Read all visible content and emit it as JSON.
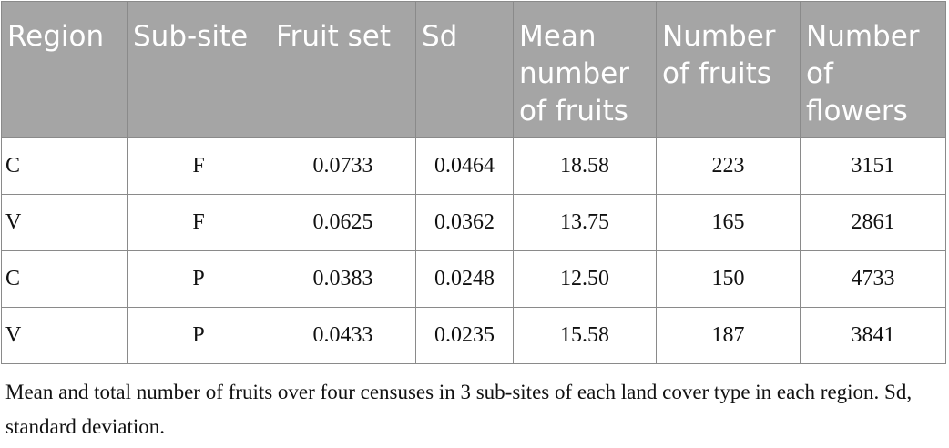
{
  "table": {
    "header": [
      "Region",
      "Sub-site",
      "Fruit set",
      "Sd",
      "Mean number of fruits",
      "Number of fruits",
      "Number of flowers"
    ],
    "rows": [
      [
        "C",
        "F",
        "0.0733",
        "0.0464",
        "18.58",
        "223",
        "3151"
      ],
      [
        "V",
        "F",
        "0.0625",
        "0.0362",
        "13.75",
        "165",
        "2861"
      ],
      [
        "C",
        "P",
        "0.0383",
        "0.0248",
        "12.50",
        "150",
        "4733"
      ],
      [
        "V",
        "P",
        "0.0433",
        "0.0235",
        "15.58",
        "187",
        "3841"
      ]
    ]
  },
  "caption": "Mean and total number of fruits over four censuses in 3 sub-sites of each land cover type in each region. Sd, standard deviation."
}
